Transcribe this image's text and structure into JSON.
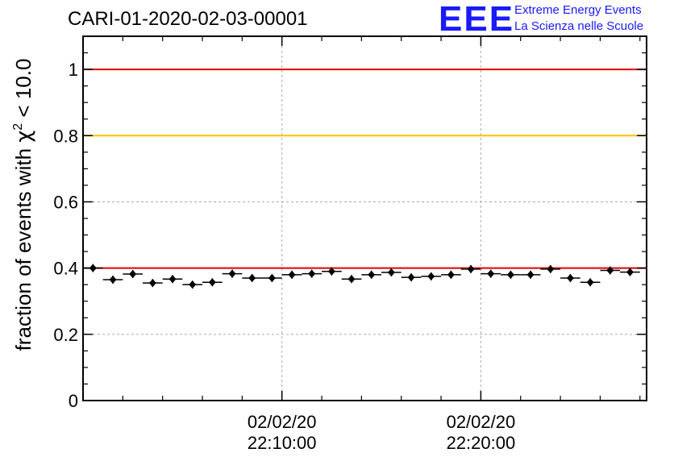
{
  "header": {
    "title": "CARI-01-2020-02-03-00001",
    "logo_text": "EEE",
    "logo_line1": "Extreme Energy Events",
    "logo_line2": "La Scienza nelle Scuole"
  },
  "colors": {
    "red_line": "#e00000",
    "yellow_line": "#ffc000",
    "logo_blue": "#1a1aff",
    "marker": "#000000"
  },
  "chart_data": {
    "type": "scatter",
    "title": "CARI-01-2020-02-03-00001",
    "ylabel": "fraction of events with χ² < 10.0",
    "ylabel_main": "fraction of events with ",
    "ylabel_chi": "χ",
    "ylabel_sup": "2",
    "ylabel_tail": " < 10.0",
    "ylim": [
      0,
      1.1
    ],
    "yticks": [
      0,
      0.2,
      0.4,
      0.6,
      0.8,
      1
    ],
    "ytick_labels": [
      "0",
      "0.2",
      "0.4",
      "0.6",
      "0.8",
      "1"
    ],
    "xlim": [
      "02/02/20 22:00:00",
      "02/02/20 22:28:20"
    ],
    "xticks": [
      {
        "value": "02/02/20 22:10:00",
        "date": "02/02/20",
        "time": "22:10:00"
      },
      {
        "value": "02/02/20 22:20:00",
        "date": "02/02/20",
        "time": "22:20:00"
      }
    ],
    "reference_lines": [
      {
        "y": 1.0,
        "color": "red"
      },
      {
        "y": 0.8,
        "color": "yellow"
      },
      {
        "y": 0.4,
        "color": "red"
      }
    ],
    "grid": true,
    "bin_width_s": 60,
    "series": [
      {
        "x": [
          "22:00:00",
          "22:01:00",
          "22:02:00",
          "22:03:00",
          "22:04:00",
          "22:05:00",
          "22:06:00",
          "22:07:00",
          "22:08:00",
          "22:09:00",
          "22:10:00",
          "22:11:00",
          "22:12:00",
          "22:13:00",
          "22:14:00",
          "22:15:00",
          "22:16:00",
          "22:17:00",
          "22:18:00",
          "22:19:00",
          "22:20:00",
          "22:21:00",
          "22:22:00",
          "22:23:00",
          "22:24:00",
          "22:25:00",
          "22:26:00",
          "22:27:00"
        ],
        "values": [
          0.4,
          0.365,
          0.382,
          0.355,
          0.367,
          0.35,
          0.357,
          0.383,
          0.37,
          0.37,
          0.38,
          0.383,
          0.39,
          0.367,
          0.38,
          0.387,
          0.372,
          0.375,
          0.38,
          0.397,
          0.383,
          0.38,
          0.38,
          0.397,
          0.37,
          0.357,
          0.393,
          0.388
        ]
      }
    ]
  }
}
